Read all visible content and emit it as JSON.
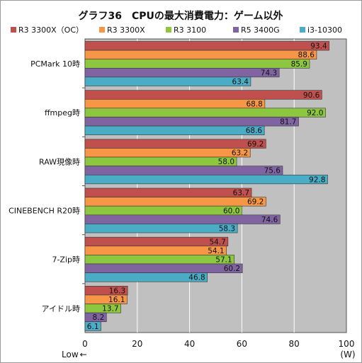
{
  "chart_data": {
    "type": "bar",
    "orientation": "horizontal",
    "title": "グラフ36　CPUの最大消費電力：ゲーム以外",
    "categories": [
      "PCMark 10時",
      "ffmpeg時",
      "RAW現像時",
      "CINEBENCH R20時",
      "7-Zip時",
      "アイドル時"
    ],
    "series": [
      {
        "name": "R3 3300X（OC）",
        "color": "#c0504d",
        "values": [
          93.4,
          90.6,
          69.2,
          63.7,
          54.7,
          16.3
        ]
      },
      {
        "name": "R3 3300X",
        "color": "#f79646",
        "values": [
          88.6,
          68.8,
          63.2,
          69.2,
          54.1,
          16.1
        ]
      },
      {
        "name": "R3 3100",
        "color": "#8dc63f",
        "values": [
          85.9,
          92.0,
          58.0,
          60.0,
          57.1,
          13.7
        ]
      },
      {
        "name": "R5 3400G",
        "color": "#8064a2",
        "values": [
          74.3,
          81.7,
          75.6,
          74.6,
          60.2,
          8.2
        ]
      },
      {
        "name": "i3-10300",
        "color": "#4bacc6",
        "values": [
          63.4,
          68.6,
          92.8,
          58.3,
          46.8,
          6.1
        ]
      }
    ],
    "value_labels": [
      [
        "93.4",
        "90.6",
        "69.2",
        "63.7",
        "54.7",
        "16.3"
      ],
      [
        "88.6",
        "68.8",
        "63.2",
        "69.2",
        "54.1",
        "16.1"
      ],
      [
        "85.9",
        "92.0",
        "58.0",
        "60.0",
        "57.1",
        "13.7"
      ],
      [
        "74.3",
        "81.7",
        "75.6",
        "74.6",
        "60.2",
        "8.2"
      ],
      [
        "63.4",
        "68.6",
        "92.8",
        "58.3",
        "46.8",
        "6.1"
      ]
    ],
    "xlim": [
      0,
      100
    ],
    "xticks": [
      0,
      20,
      40,
      60,
      80,
      100
    ],
    "xlabel_left": "Low",
    "xlabel_left_arrow": "←",
    "xunit": "(W)",
    "legend_position": "top",
    "grid": true,
    "plot_background": "#c0c0c0"
  }
}
